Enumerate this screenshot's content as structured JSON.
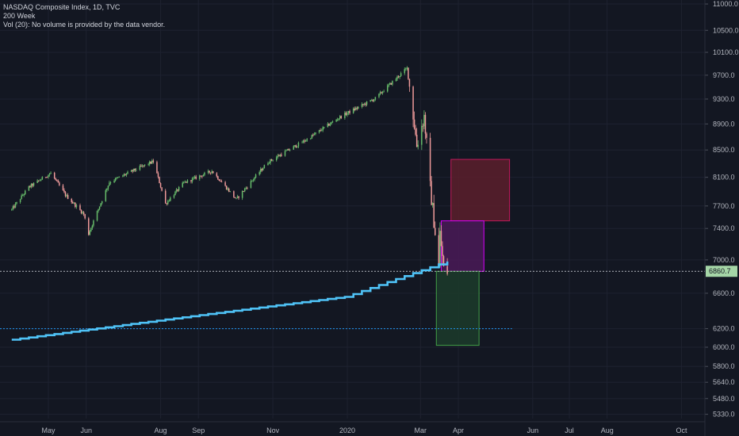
{
  "legend": {
    "symbol_line": "NASDAQ Composite Index, 1D, TVC",
    "ma_line": "200 Week",
    "vol_line": "Vol (20): No volume is provided by the data vendor."
  },
  "colors": {
    "background": "#131722",
    "up": "#66bb6a",
    "down": "#ef9a9a",
    "ma": "#4fc3f7",
    "grid": "#1e2230",
    "price_tag": "#a5d6a7"
  },
  "chart_data": {
    "type": "candlestick",
    "title": "NASDAQ Composite Index, 1D, TVC",
    "y_axis": {
      "position": "right",
      "ticks": [
        11000,
        10500,
        10100,
        9700,
        9300,
        8900,
        8500,
        8100,
        7700,
        7400,
        7000,
        6600,
        6200,
        6000,
        5800,
        5640,
        5480,
        5330
      ]
    },
    "x_axis": {
      "ticks": [
        {
          "label": "May",
          "date": "2019-05-01"
        },
        {
          "label": "Jun",
          "date": "2019-06-01"
        },
        {
          "label": "Aug",
          "date": "2019-08-01"
        },
        {
          "label": "Sep",
          "date": "2019-09-01"
        },
        {
          "label": "Nov",
          "date": "2019-11-01"
        },
        {
          "label": "2020",
          "date": "2020-01-01"
        },
        {
          "label": "Mar",
          "date": "2020-03-01"
        },
        {
          "label": "Apr",
          "date": "2020-04-01"
        },
        {
          "label": "Jun",
          "date": "2020-06-01"
        },
        {
          "label": "Jul",
          "date": "2020-07-01"
        },
        {
          "label": "Aug",
          "date": "2020-08-01"
        },
        {
          "label": "Oct",
          "date": "2020-10-01"
        }
      ]
    },
    "price_path": [
      [
        "2019-04-01",
        7650
      ],
      [
        "2019-04-15",
        7960
      ],
      [
        "2019-05-03",
        8160
      ],
      [
        "2019-05-15",
        7850
      ],
      [
        "2019-05-30",
        7590
      ],
      [
        "2019-06-03",
        7330
      ],
      [
        "2019-06-20",
        8030
      ],
      [
        "2019-07-10",
        8200
      ],
      [
        "2019-07-26",
        8330
      ],
      [
        "2019-08-05",
        7730
      ],
      [
        "2019-08-20",
        8020
      ],
      [
        "2019-09-12",
        8190
      ],
      [
        "2019-10-02",
        7790
      ],
      [
        "2019-10-28",
        8320
      ],
      [
        "2019-11-29",
        8660
      ],
      [
        "2019-12-27",
        9020
      ],
      [
        "2020-01-24",
        9310
      ],
      [
        "2020-02-19",
        9820
      ],
      [
        "2020-02-27",
        8570
      ],
      [
        "2020-03-04",
        9020
      ],
      [
        "2020-03-09",
        7950
      ],
      [
        "2020-03-16",
        6900
      ],
      [
        "2020-03-17",
        7330
      ],
      [
        "2020-03-20",
        6880
      ],
      [
        "2020-03-23",
        6860
      ]
    ],
    "moving_average": {
      "name": "200 Week",
      "points": [
        [
          "2019-04-01",
          6080
        ],
        [
          "2019-12-31",
          6560
        ],
        [
          "2020-03-23",
          6980
        ]
      ]
    },
    "last_price": 6860.7,
    "horizontal_lines": [
      {
        "value": 6860.7,
        "style": "dotted",
        "color": "#b2b5be"
      },
      {
        "value": 6200,
        "style": "dotted",
        "color": "#2196f3",
        "end_date": "2020-05-15"
      }
    ],
    "zones": [
      {
        "start": "2020-03-26",
        "end": "2020-05-13",
        "top": 8360,
        "bottom": 7500,
        "fill": "#5c1f2b",
        "stroke": "#c2185b"
      },
      {
        "start": "2020-03-18",
        "end": "2020-04-22",
        "top": 7500,
        "bottom": 6860,
        "fill": "#4a1a57",
        "stroke": "#d500f9"
      },
      {
        "start": "2020-03-14",
        "end": "2020-04-18",
        "top": 6860,
        "bottom": 6020,
        "fill": "#1c3b2a",
        "stroke": "#43a047"
      }
    ]
  }
}
